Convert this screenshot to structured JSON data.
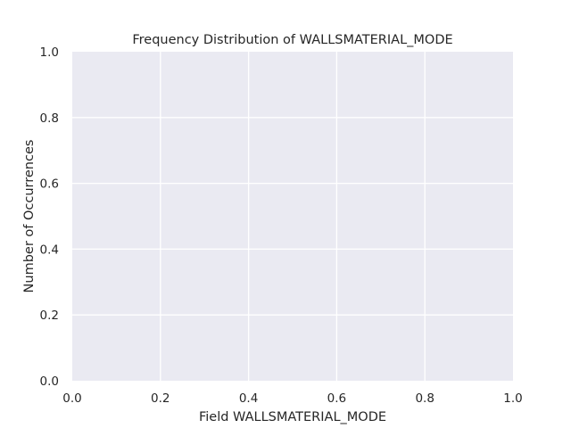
{
  "chart_data": {
    "type": "bar",
    "title": "Frequency Distribution of WALLSMATERIAL_MODE",
    "xlabel": "Field WALLSMATERIAL_MODE",
    "ylabel": "Number of Occurrences",
    "categories": [],
    "values": [],
    "xlim": [
      0.0,
      1.0
    ],
    "ylim": [
      0.0,
      1.0
    ],
    "xticks": [
      "0.0",
      "0.2",
      "0.4",
      "0.6",
      "0.8",
      "1.0"
    ],
    "yticks": [
      "0.0",
      "0.2",
      "0.4",
      "0.6",
      "0.8",
      "1.0"
    ],
    "grid": true,
    "colors": {
      "plot_background": "#eaeaf2",
      "grid": "#ffffff",
      "text": "#262626"
    }
  }
}
